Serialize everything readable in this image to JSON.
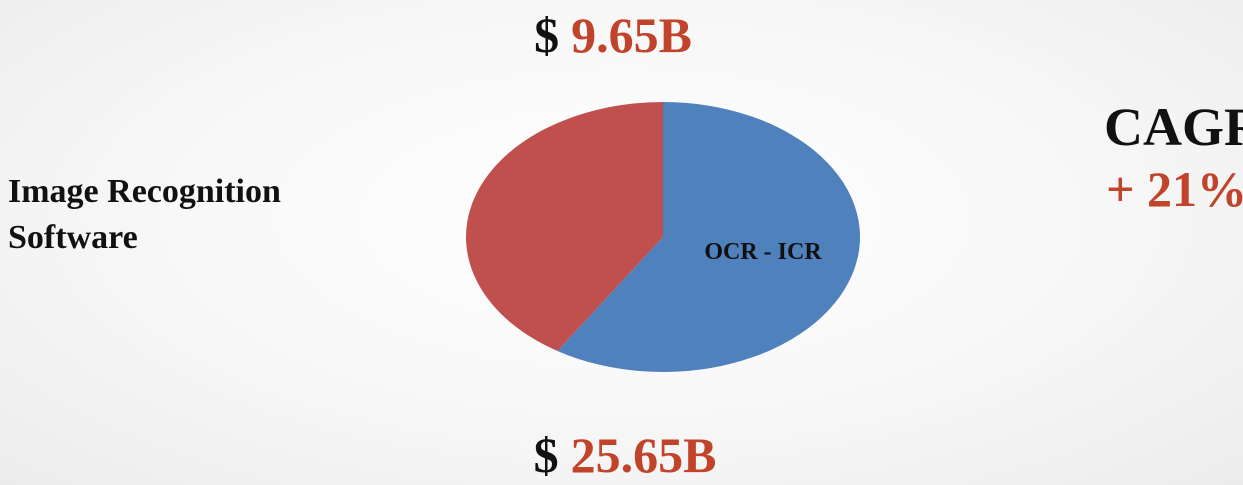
{
  "chart_data": {
    "type": "pie",
    "categories": [
      "OCR - ICR",
      null
    ],
    "values": [
      59,
      41
    ],
    "colors": [
      "#4f81bd",
      "#c0504d"
    ],
    "top_label": {
      "prefix": "$",
      "value": "9.65B"
    },
    "bottom_label": {
      "prefix": "$",
      "value": "25.65B"
    },
    "side_label": [
      "Image Recognition",
      "Software"
    ],
    "growth": {
      "title": "CAGR",
      "value": "+ 21%"
    }
  }
}
